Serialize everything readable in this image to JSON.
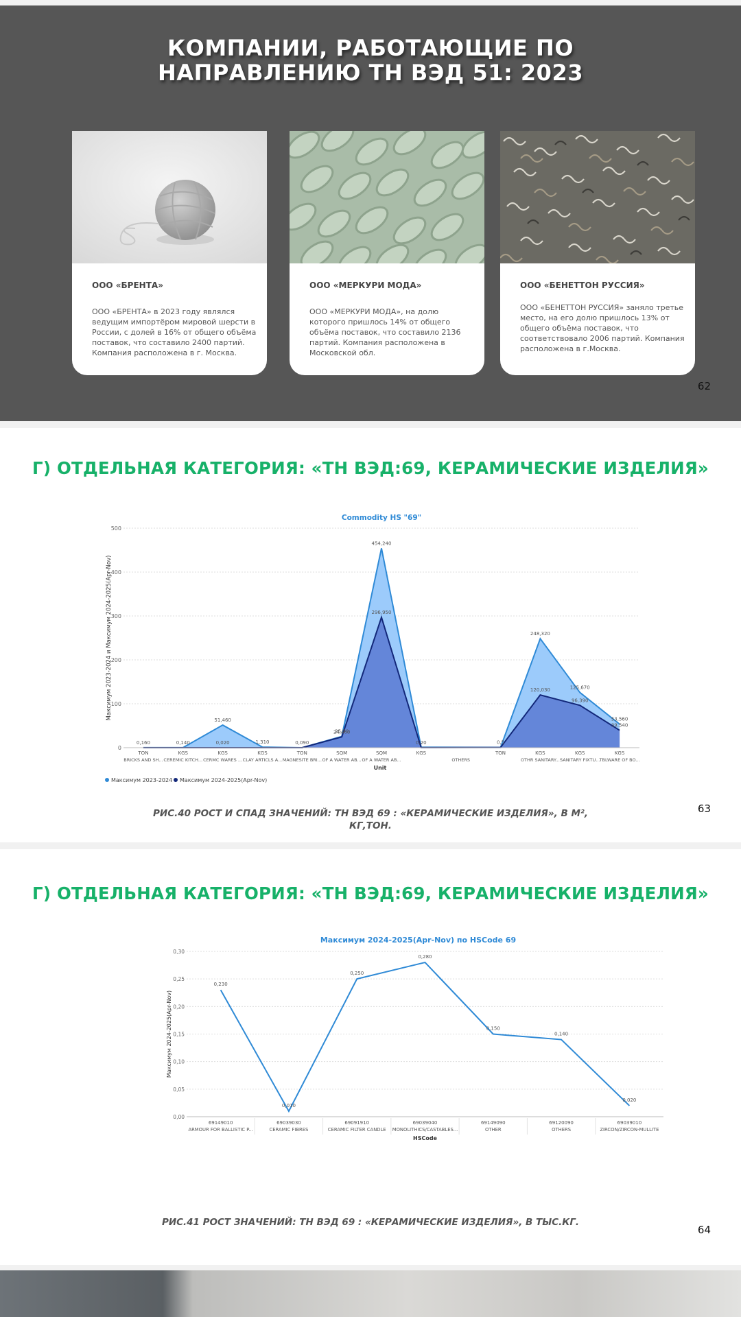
{
  "slide62": {
    "title_line1": "КОМПАНИИ, РАБОТАЮЩИЕ ПО",
    "title_line2": "НАПРАВЛЕНИЮ ТН ВЭД 51: 2023",
    "cards": [
      {
        "name": "ООО «БРЕНТА»",
        "description": "ООО «БРЕНТА» в 2023 году являлся ведущим импортёром мировой шерсти в России, с долей в 16% от общего объёма поставок, что составило 2400 партий. Компания расположена в г. Москва."
      },
      {
        "name": "ООО «МЕРКУРИ МОДА»",
        "description": "ООО «МЕРКУРИ МОДА», на долю которого пришлось 14% от общего объёма поставок, что составило 2136 партий. Компания расположена в Московской обл."
      },
      {
        "name": "ООО «БЕНЕТТОН РУССИЯ»",
        "description": " ООО «БЕНЕТТОН РУССИЯ» заняло третье место, на его долю пришлось 13% от общего объёма поставок, что соответствовало 2006 партий. Компания расположена в г.Москва."
      }
    ],
    "page_number": "62"
  },
  "slide63": {
    "title": "Г) ОТДЕЛЬНАЯ КАТЕГОРИЯ: «ТН ВЭД:69, КЕРАМИЧЕСКИЕ ИЗДЕЛИЯ»",
    "caption_line1": "РИС.40 РОСТ И СПАД ЗНАЧЕНИЙ: ТН ВЭД 69 : «КЕРАМИЧЕСКИЕ ИЗДЕЛИЯ», В М², ",
    "caption_line2": "КГ,ТОН.",
    "page_number": "63"
  },
  "slide64": {
    "title": "Г) ОТДЕЛЬНАЯ КАТЕГОРИЯ: «ТН ВЭД:69, КЕРАМИЧЕСКИЕ ИЗДЕЛИЯ»",
    "caption": "РИС.41 РОСТ ЗНАЧЕНИЙ: ТН ВЭД 69 : «КЕРАМИЧЕСКИЕ ИЗДЕЛИЯ», В ТЫС.КГ.",
    "page_number": "64"
  },
  "chart_data": [
    {
      "type": "area",
      "title": "Commodity HS \"69\"",
      "xlabel": "Unit",
      "ylabel": "Максимум 2023-2024 и Максимум 2024-2025(Apr-Nov)",
      "ylim": [
        0,
        500
      ],
      "yticks": [
        "0",
        "100",
        "200",
        "300",
        "400",
        "500"
      ],
      "grid": true,
      "legend_position": "bottom-left",
      "categories": [
        {
          "unit": "TON",
          "name": "BRICKS AND SH..."
        },
        {
          "unit": "KGS",
          "name": "CEREMIC KITCH..."
        },
        {
          "unit": "KGS",
          "name": "CERMC WARES ..."
        },
        {
          "unit": "KGS",
          "name": "CLAY ARTICLS A..."
        },
        {
          "unit": "TON",
          "name": "MAGNESITE BRI..."
        },
        {
          "unit": "SQM",
          "name": "OF A WATER AB..."
        },
        {
          "unit": "SQM",
          "name": "OF A WATER AB..."
        },
        {
          "unit": "KGS",
          "name": ""
        },
        {
          "unit": "",
          "name": "OTHERS"
        },
        {
          "unit": "TON",
          "name": ""
        },
        {
          "unit": "KGS",
          "name": "OTHR SANITARY..."
        },
        {
          "unit": "KGS",
          "name": "SANITARY FIXTU..."
        },
        {
          "unit": "KGS",
          "name": "TBLWARE OF BO..."
        }
      ],
      "series": [
        {
          "name": "Максимум  2023-2024",
          "color": "#9ccbfb",
          "line_color": "#2f8ad6",
          "values": [
            0.16,
            0.14,
            51.46,
            1.31,
            0.09,
            25.7,
            454.24,
            1.0,
            null,
            0.5,
            248.32,
            125.67,
            53.56
          ],
          "labels": [
            "0,160",
            "0,140",
            "51,460",
            "1,310",
            "0,090",
            "25,70",
            "454,240",
            "",
            null,
            "0,5",
            "248,320",
            "125,670",
            "53,560"
          ]
        },
        {
          "name": "Максимум 2024-2025(Apr-Nov)",
          "color": "#5f80d6",
          "line_color": "#13287a",
          "values": [
            0.01,
            0.02,
            0.02,
            0.01,
            0.01,
            24.46,
            296.95,
            0.2,
            null,
            0.5,
            120.03,
            96.39,
            39.54
          ],
          "labels": [
            "",
            "",
            "0,020",
            "",
            "",
            "24,460",
            "296,950",
            "0,20",
            null,
            "",
            "120,030",
            "96,390",
            "39,540"
          ]
        }
      ]
    },
    {
      "type": "line",
      "title": "Максимум 2024-2025(Apr-Nov) по HSCode 69",
      "xlabel": "HSCode",
      "ylabel": "Максимум 2024-2025(Apr-Nov)",
      "ylim": [
        0,
        0.3
      ],
      "yticks": [
        "0,00",
        "0,05",
        "0,10",
        "0,15",
        "0,20",
        "0,25",
        "0,30"
      ],
      "grid": true,
      "color": "#2f8ad6",
      "categories": [
        {
          "code": "69149010",
          "name": "ARMOUR FOR BALLISTIC P..."
        },
        {
          "code": "69039030",
          "name": "CERAMIC FIBRES"
        },
        {
          "code": "69091910",
          "name": "CERAMIC FILTER CANDLE"
        },
        {
          "code": "69039040",
          "name": "MONOLITHICS/CASTABLES..."
        },
        {
          "code": "69149090",
          "name": "OTHER"
        },
        {
          "code": "69120090",
          "name": "OTHERS"
        },
        {
          "code": "69039010",
          "name": "ZIRCON/ZIRCON-MULLITE"
        }
      ],
      "values": [
        0.23,
        0.01,
        0.25,
        0.28,
        0.15,
        0.14,
        0.02
      ],
      "labels": [
        "0,230",
        "0,010",
        "0,250",
        "0,280",
        "0,150",
        "0,140",
        "0,020"
      ]
    }
  ]
}
